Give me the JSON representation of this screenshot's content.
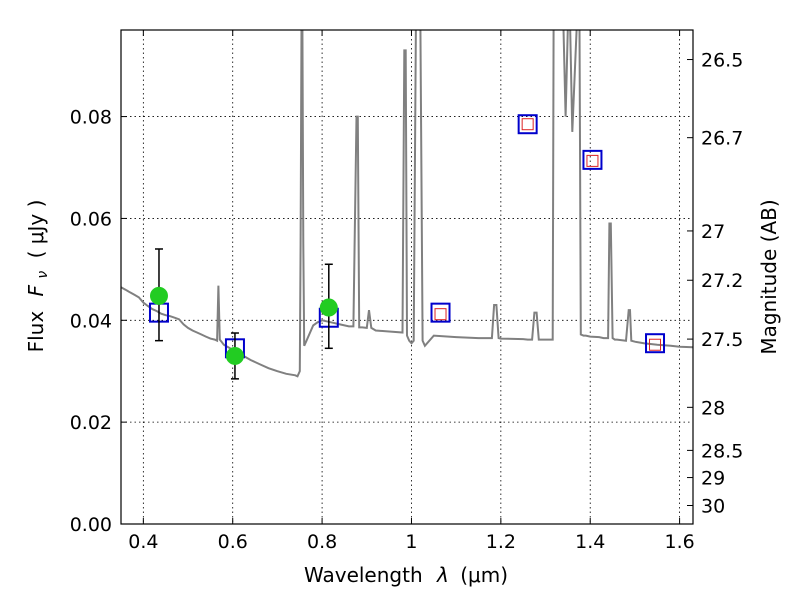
{
  "chart_data": {
    "type": "line",
    "xlabel": "Wavelength",
    "xlabel_symbol": "λ",
    "xlabel_unit": "(μm)",
    "ylabel": "Flux",
    "ylabel_symbol": "F",
    "ylabel_sub": "ν",
    "ylabel_unit": "( μJy )",
    "y2label": "Magnitude (AB)",
    "xlim": [
      0.35,
      1.63
    ],
    "ylim": [
      0.0,
      0.097
    ],
    "grid": true,
    "x_ticks": [
      0.4,
      0.6,
      0.8,
      1.0,
      1.2,
      1.4,
      1.6
    ],
    "x_tick_labels": [
      "0.4",
      "0.6",
      "0.8",
      "1",
      "1.2",
      "1.4",
      "1.6"
    ],
    "y_ticks": [
      0.0,
      0.02,
      0.04,
      0.06,
      0.08
    ],
    "y_tick_labels": [
      "0.00",
      "0.02",
      "0.04",
      "0.06",
      "0.08"
    ],
    "mag_ticks": [
      26.5,
      26.7,
      27,
      27.2,
      27.5,
      28,
      28.5,
      29,
      30
    ],
    "mag_tick_labels": [
      "26.5",
      "26.7",
      "27",
      "27.2",
      "27.5",
      "28",
      "28.5",
      "29",
      "30"
    ],
    "series": [
      {
        "kind": "spectrum",
        "color": "#808080",
        "x": [
          0.35,
          0.36,
          0.37,
          0.38,
          0.39,
          0.4,
          0.41,
          0.42,
          0.43,
          0.44,
          0.45,
          0.46,
          0.47,
          0.48,
          0.49,
          0.5,
          0.51,
          0.52,
          0.53,
          0.54,
          0.55,
          0.56,
          0.565,
          0.568,
          0.571,
          0.575,
          0.58,
          0.6,
          0.62,
          0.64,
          0.66,
          0.68,
          0.7,
          0.72,
          0.74,
          0.745,
          0.75,
          0.752,
          0.754,
          0.756,
          0.758,
          0.76,
          0.765,
          0.78,
          0.79,
          0.8,
          0.81,
          0.82,
          0.84,
          0.86,
          0.87,
          0.877,
          0.88,
          0.883,
          0.89,
          0.9,
          0.905,
          0.91,
          0.92,
          0.95,
          0.98,
          0.984,
          0.987,
          0.99,
          0.995,
          1.0,
          1.005,
          1.01,
          1.012,
          1.015,
          1.018,
          1.02,
          1.025,
          1.03,
          1.05,
          1.1,
          1.15,
          1.18,
          1.185,
          1.19,
          1.195,
          1.2,
          1.25,
          1.26,
          1.27,
          1.275,
          1.28,
          1.285,
          1.29,
          1.3,
          1.316,
          1.318,
          1.32,
          1.34,
          1.345,
          1.35,
          1.355,
          1.36,
          1.37,
          1.373,
          1.376,
          1.379,
          1.385,
          1.39,
          1.4,
          1.42,
          1.43,
          1.44,
          1.443,
          1.446,
          1.45,
          1.455,
          1.46,
          1.48,
          1.486,
          1.489,
          1.492,
          1.5,
          1.52,
          1.55,
          1.58,
          1.6,
          1.63
        ],
        "y": [
          0.0465,
          0.046,
          0.0455,
          0.045,
          0.0445,
          0.0435,
          0.0428,
          0.0422,
          0.0418,
          0.0413,
          0.041,
          0.0408,
          0.0405,
          0.0402,
          0.0392,
          0.0385,
          0.038,
          0.0376,
          0.0372,
          0.0368,
          0.0364,
          0.0362,
          0.036,
          0.0468,
          0.0362,
          0.0358,
          0.0352,
          0.0342,
          0.0332,
          0.0322,
          0.0314,
          0.0306,
          0.03,
          0.0295,
          0.0292,
          0.029,
          0.03,
          0.055,
          0.098,
          0.098,
          0.055,
          0.035,
          0.036,
          0.039,
          0.0396,
          0.04,
          0.0398,
          0.0396,
          0.0392,
          0.0388,
          0.0388,
          0.08,
          0.08,
          0.0386,
          0.0386,
          0.0385,
          0.042,
          0.0385,
          0.038,
          0.0378,
          0.0376,
          0.093,
          0.093,
          0.037,
          0.036,
          0.0355,
          0.036,
          0.098,
          0.098,
          0.098,
          0.098,
          0.098,
          0.036,
          0.035,
          0.037,
          0.0367,
          0.0365,
          0.0365,
          0.043,
          0.043,
          0.0365,
          0.0364,
          0.0363,
          0.0362,
          0.0362,
          0.0415,
          0.0415,
          0.0362,
          0.0362,
          0.0362,
          0.0362,
          0.098,
          0.098,
          0.098,
          0.08,
          0.098,
          0.098,
          0.077,
          0.098,
          0.098,
          0.098,
          0.0372,
          0.037,
          0.037,
          0.0368,
          0.0367,
          0.0365,
          0.0365,
          0.059,
          0.059,
          0.0365,
          0.0362,
          0.0362,
          0.036,
          0.042,
          0.042,
          0.036,
          0.0358,
          0.0355,
          0.0352,
          0.035,
          0.0348,
          0.0347
        ]
      },
      {
        "kind": "observed",
        "color": "#22cc22",
        "x": [
          0.435,
          0.605,
          0.815
        ],
        "y": [
          0.0448,
          0.033,
          0.0425
        ],
        "yerr_low": [
          0.036,
          0.0285,
          0.0345
        ],
        "yerr_high": [
          0.054,
          0.0375,
          0.051
        ]
      },
      {
        "kind": "model-band",
        "color": "#0000cc",
        "x": [
          0.435,
          0.605,
          0.815,
          1.065,
          1.26,
          1.405,
          1.545
        ],
        "y": [
          0.0415,
          0.0345,
          0.0405,
          0.0415,
          0.0785,
          0.0715,
          0.0355
        ]
      },
      {
        "kind": "model-band-inner",
        "color": "#dd2222",
        "x": [
          1.065,
          1.26,
          1.405,
          1.545
        ],
        "y": [
          0.0412,
          0.0785,
          0.0713,
          0.0352
        ]
      }
    ]
  }
}
